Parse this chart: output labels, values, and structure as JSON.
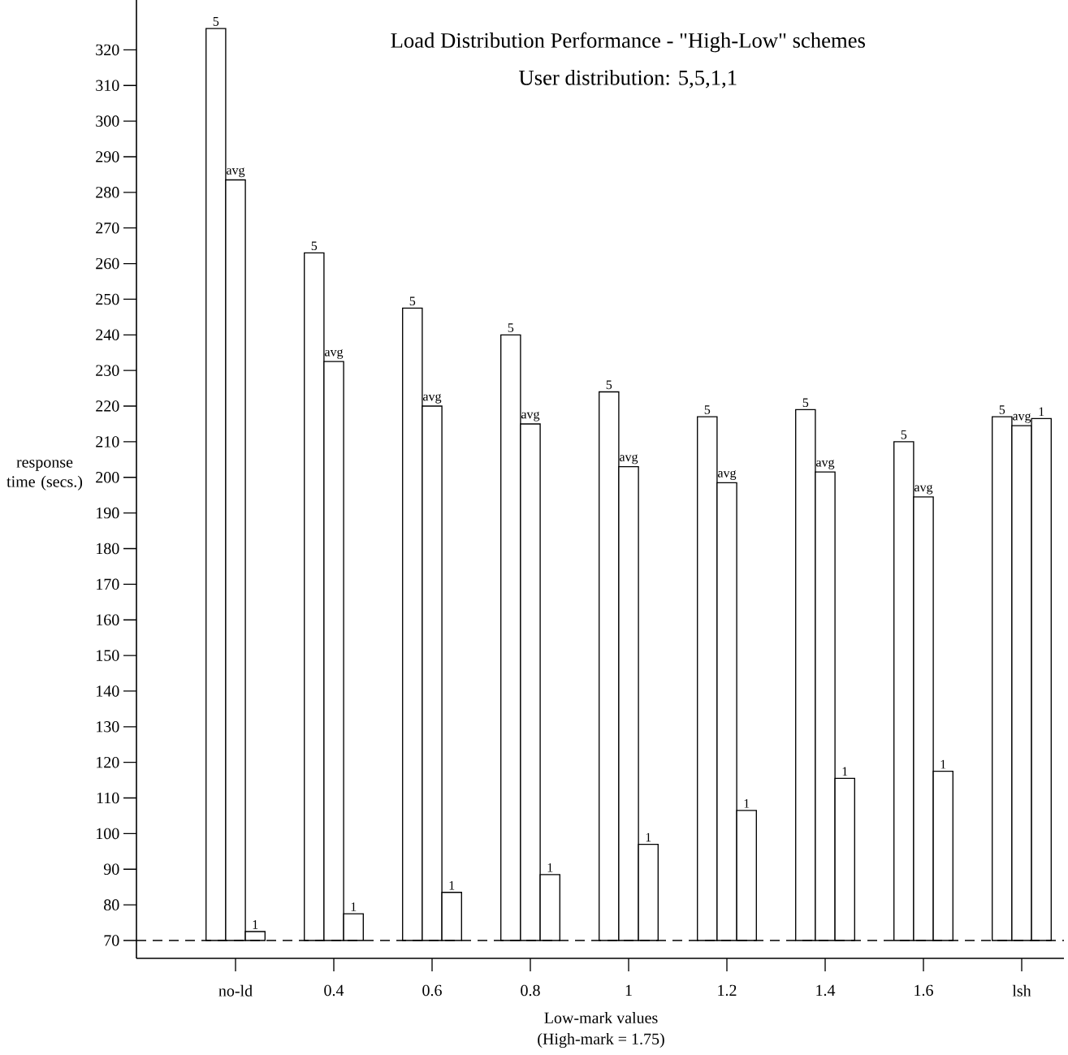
{
  "chart_data": {
    "type": "bar",
    "title": "Load Distribution Performance - \"High-Low\" schemes",
    "subtitle": "User distribution: 5,5,1,1",
    "xlabel": "Low-mark values",
    "ylabel": "response time (secs.)",
    "annotations": [
      "(High-mark = 1.75)"
    ],
    "categories": [
      "no-ld",
      "0.4",
      "0.6",
      "0.8",
      "1",
      "1.2",
      "1.4",
      "1.6",
      "lsh"
    ],
    "series": [
      {
        "name": "5",
        "color": "#ffffff",
        "values": [
          326,
          263,
          247.5,
          240,
          224,
          217,
          219,
          210,
          217
        ]
      },
      {
        "name": "avg",
        "color": "#ffffff",
        "values": [
          283.5,
          232.5,
          220,
          215,
          203,
          198.5,
          201.5,
          194.5,
          214.5
        ]
      },
      {
        "name": "1",
        "color": "#ffffff",
        "values": [
          72.5,
          77.5,
          83.5,
          88.5,
          97,
          106.5,
          115.5,
          117.5,
          216.5
        ]
      }
    ],
    "ylim": [
      70,
      334
    ],
    "yticks": [
      70,
      80,
      90,
      100,
      110,
      120,
      130,
      140,
      150,
      160,
      170,
      180,
      190,
      200,
      210,
      220,
      230,
      240,
      250,
      260,
      270,
      280,
      290,
      300,
      310,
      320
    ],
    "ref_lines": [
      {
        "axis": "y",
        "value": 70,
        "line_style": "dashed"
      }
    ]
  }
}
